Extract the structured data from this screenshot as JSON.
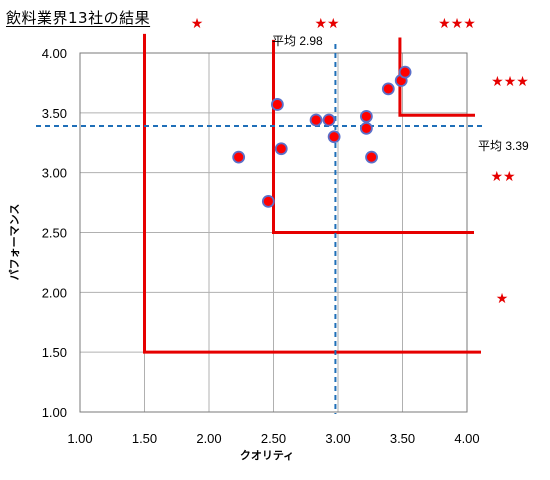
{
  "chart_data": {
    "type": "scatter",
    "title": "飲料業界13社の結果",
    "xlabel": "クオリティ",
    "ylabel": "パフォーマンス",
    "xlim": [
      1.0,
      4.0
    ],
    "ylim": [
      1.0,
      4.0
    ],
    "x_ticks": [
      "1.00",
      "1.50",
      "2.00",
      "2.50",
      "3.00",
      "3.50",
      "4.00"
    ],
    "y_ticks": [
      "1.00",
      "1.50",
      "2.00",
      "2.50",
      "3.00",
      "3.50",
      "4.00"
    ],
    "grid": true,
    "points": [
      {
        "x": 2.23,
        "y": 3.13
      },
      {
        "x": 2.46,
        "y": 2.76
      },
      {
        "x": 2.53,
        "y": 3.57
      },
      {
        "x": 2.56,
        "y": 3.2
      },
      {
        "x": 2.83,
        "y": 3.44
      },
      {
        "x": 2.93,
        "y": 3.44
      },
      {
        "x": 2.97,
        "y": 3.3
      },
      {
        "x": 3.22,
        "y": 3.47
      },
      {
        "x": 3.22,
        "y": 3.37
      },
      {
        "x": 3.26,
        "y": 3.13
      },
      {
        "x": 3.39,
        "y": 3.7
      },
      {
        "x": 3.49,
        "y": 3.77
      },
      {
        "x": 3.52,
        "y": 3.84
      }
    ],
    "average_lines": {
      "x": {
        "value": 2.98,
        "label": "平均 2.98"
      },
      "y": {
        "value": 3.39,
        "label": "平均 3.39"
      }
    },
    "star_ratings": [
      {
        "label": "★",
        "position": "top"
      },
      {
        "label": "★★",
        "position": "top"
      },
      {
        "label": "★★★",
        "position": "top"
      },
      {
        "label": "★★★",
        "position": "right"
      },
      {
        "label": "★★",
        "position": "right"
      },
      {
        "label": "★",
        "position": "right"
      }
    ],
    "colors": {
      "point_fill": "#ff0000",
      "point_stroke": "#5b6fc9",
      "average_line": "#1f6fb8",
      "tier_line": "#e60000",
      "star": "#e60000",
      "grid": "#b0b0b0"
    }
  }
}
